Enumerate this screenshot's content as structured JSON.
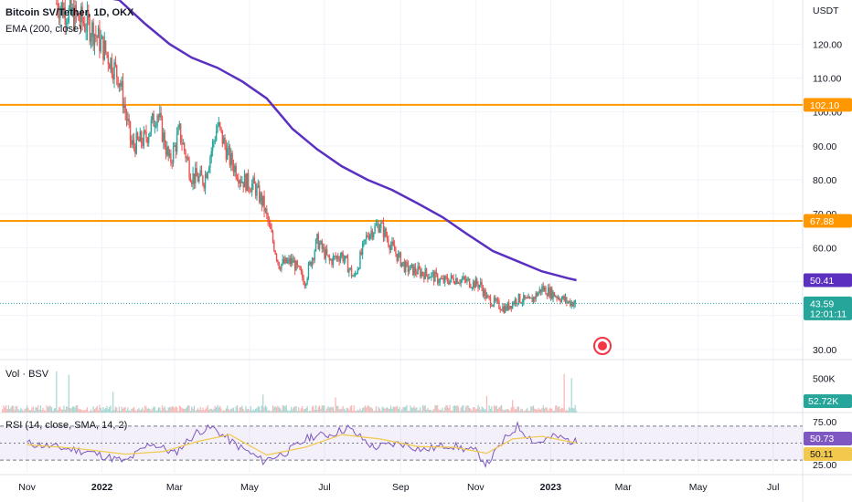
{
  "header": {
    "symbol": "Bitcoin SV/Tether, 1D, OKX",
    "indicator": "EMA (200, close)",
    "volume_title": "Vol · BSV",
    "rsi_title": "RSI (14, close, SMA, 14, 2)"
  },
  "colors": {
    "up": "#26a69a",
    "down": "#ef5350",
    "ema": "#5b2fbf",
    "level": "#ff9800",
    "rsi": "#7e57c2",
    "rsi_ma": "#f2c94c",
    "rsi_band": "#7e57c2",
    "price_line": "#26a69a"
  },
  "chart_data": {
    "type": "line",
    "x_axis": {
      "type": "date",
      "range": [
        "2021-10-10",
        "2023-07-25"
      ],
      "tick_labels": [
        {
          "date": "2021-11-01",
          "label": "Nov"
        },
        {
          "date": "2022-01-01",
          "label": "2022"
        },
        {
          "date": "2022-03-01",
          "label": "Mar"
        },
        {
          "date": "2022-05-01",
          "label": "May"
        },
        {
          "date": "2022-07-01",
          "label": "Jul"
        },
        {
          "date": "2022-09-01",
          "label": "Sep"
        },
        {
          "date": "2022-11-01",
          "label": "Nov"
        },
        {
          "date": "2023-01-01",
          "label": "2023"
        },
        {
          "date": "2023-03-01",
          "label": "Mar"
        },
        {
          "date": "2023-05-01",
          "label": "May"
        },
        {
          "date": "2023-07-01",
          "label": "Jul"
        }
      ]
    },
    "price_panel": {
      "currency": "USDT",
      "ylim": [
        27,
        133
      ],
      "y_ticks": [
        30,
        40,
        50,
        60,
        70,
        80,
        90,
        100,
        110,
        120
      ],
      "y_tick_labels": [
        "30.00",
        "40.00",
        "50.00",
        "60.00",
        "70.00",
        "80.00",
        "90.00",
        "100.00",
        "110.00",
        "120.00"
      ],
      "close_series": {
        "x": [
          "2021-11-25",
          "2021-12-05",
          "2021-12-15",
          "2021-12-25",
          "2022-01-05",
          "2022-01-15",
          "2022-01-25",
          "2022-02-05",
          "2022-02-15",
          "2022-02-25",
          "2022-03-05",
          "2022-03-15",
          "2022-03-25",
          "2022-04-05",
          "2022-04-15",
          "2022-04-25",
          "2022-05-05",
          "2022-05-12",
          "2022-05-25",
          "2022-06-05",
          "2022-06-15",
          "2022-06-25",
          "2022-07-05",
          "2022-07-15",
          "2022-07-25",
          "2022-08-05",
          "2022-08-15",
          "2022-08-25",
          "2022-09-05",
          "2022-09-15",
          "2022-09-25",
          "2022-10-05",
          "2022-10-15",
          "2022-10-25",
          "2022-11-05",
          "2022-11-10",
          "2022-11-25",
          "2022-12-05",
          "2022-12-15",
          "2022-12-25",
          "2023-01-05",
          "2023-01-15",
          "2023-01-22"
        ],
        "y": [
          132,
          129,
          127,
          124,
          117,
          110,
          90,
          92,
          100,
          85,
          94,
          81,
          80,
          96,
          86,
          80,
          78,
          73,
          55,
          56,
          50,
          62,
          56,
          58,
          51,
          64,
          67,
          60,
          54,
          53,
          52,
          50,
          51,
          50,
          49,
          45,
          42,
          45,
          44,
          48,
          46,
          44,
          43.59
        ]
      },
      "ema_200": {
        "name": "EMA (200, close)",
        "x": [
          "2021-12-25",
          "2022-01-15",
          "2022-02-05",
          "2022-02-25",
          "2022-03-15",
          "2022-04-05",
          "2022-04-25",
          "2022-05-15",
          "2022-06-05",
          "2022-06-25",
          "2022-07-15",
          "2022-08-05",
          "2022-08-25",
          "2022-09-15",
          "2022-10-05",
          "2022-10-25",
          "2022-11-15",
          "2022-12-05",
          "2022-12-25",
          "2023-01-15",
          "2023-01-22"
        ],
        "y": [
          139,
          133,
          126,
          120,
          116,
          113,
          109,
          104,
          95,
          89,
          84,
          80,
          77,
          73,
          69,
          64,
          59,
          56,
          53,
          51,
          50.41
        ]
      },
      "horizontal_levels": [
        102.1,
        67.88
      ],
      "price_labels": [
        {
          "label": "102.10",
          "color": "#ff9800"
        },
        {
          "label": "67.88",
          "color": "#ff9800"
        },
        {
          "label": "50.41",
          "color": "#5b2fbf"
        },
        {
          "label": "43.59",
          "sublabel": "12:01:11",
          "color": "#26a69a"
        }
      ]
    },
    "volume_panel": {
      "y_tick_labels": [
        "500K"
      ],
      "last_value_label": "52.72K",
      "spikes": [
        {
          "x": "2021-11-25",
          "value": 600000
        },
        {
          "x": "2021-12-05",
          "value": 550000
        },
        {
          "x": "2022-01-10",
          "value": 300000
        },
        {
          "x": "2022-05-12",
          "value": 260000
        },
        {
          "x": "2022-07-10",
          "value": 220000
        },
        {
          "x": "2022-11-10",
          "value": 240000
        },
        {
          "x": "2022-12-01",
          "value": 180000
        },
        {
          "x": "2023-01-12",
          "value": 560000
        },
        {
          "x": "2023-01-18",
          "value": 500000
        }
      ]
    },
    "rsi_panel": {
      "ylim": [
        15,
        85
      ],
      "y_tick_labels": [
        "75.00",
        "25.00"
      ],
      "band": [
        30,
        70
      ],
      "values": {
        "rsi": "50.73",
        "rsi_ma": "50.11"
      },
      "rsi_series": {
        "x": [
          "2021-11-01",
          "2021-11-25",
          "2021-12-20",
          "2022-01-20",
          "2022-02-10",
          "2022-03-01",
          "2022-03-20",
          "2022-04-01",
          "2022-04-20",
          "2022-05-12",
          "2022-06-01",
          "2022-06-20",
          "2022-07-05",
          "2022-07-20",
          "2022-08-10",
          "2022-09-01",
          "2022-09-20",
          "2022-10-10",
          "2022-11-01",
          "2022-11-10",
          "2022-11-25",
          "2022-12-05",
          "2022-12-20",
          "2023-01-05",
          "2023-01-22"
        ],
        "y": [
          50,
          45,
          40,
          28,
          50,
          38,
          64,
          68,
          48,
          29,
          40,
          58,
          60,
          68,
          45,
          50,
          42,
          48,
          40,
          25,
          55,
          70,
          50,
          58,
          50.73
        ]
      },
      "rsi_ma_series": {
        "x": [
          "2021-11-01",
          "2021-12-10",
          "2022-01-20",
          "2022-02-20",
          "2022-03-20",
          "2022-04-15",
          "2022-05-15",
          "2022-06-15",
          "2022-07-15",
          "2022-08-15",
          "2022-09-15",
          "2022-10-15",
          "2022-11-10",
          "2022-12-01",
          "2022-12-25",
          "2023-01-22"
        ],
        "y": [
          48,
          44,
          37,
          40,
          52,
          60,
          36,
          45,
          60,
          55,
          46,
          45,
          38,
          55,
          58,
          50.11
        ]
      }
    }
  }
}
